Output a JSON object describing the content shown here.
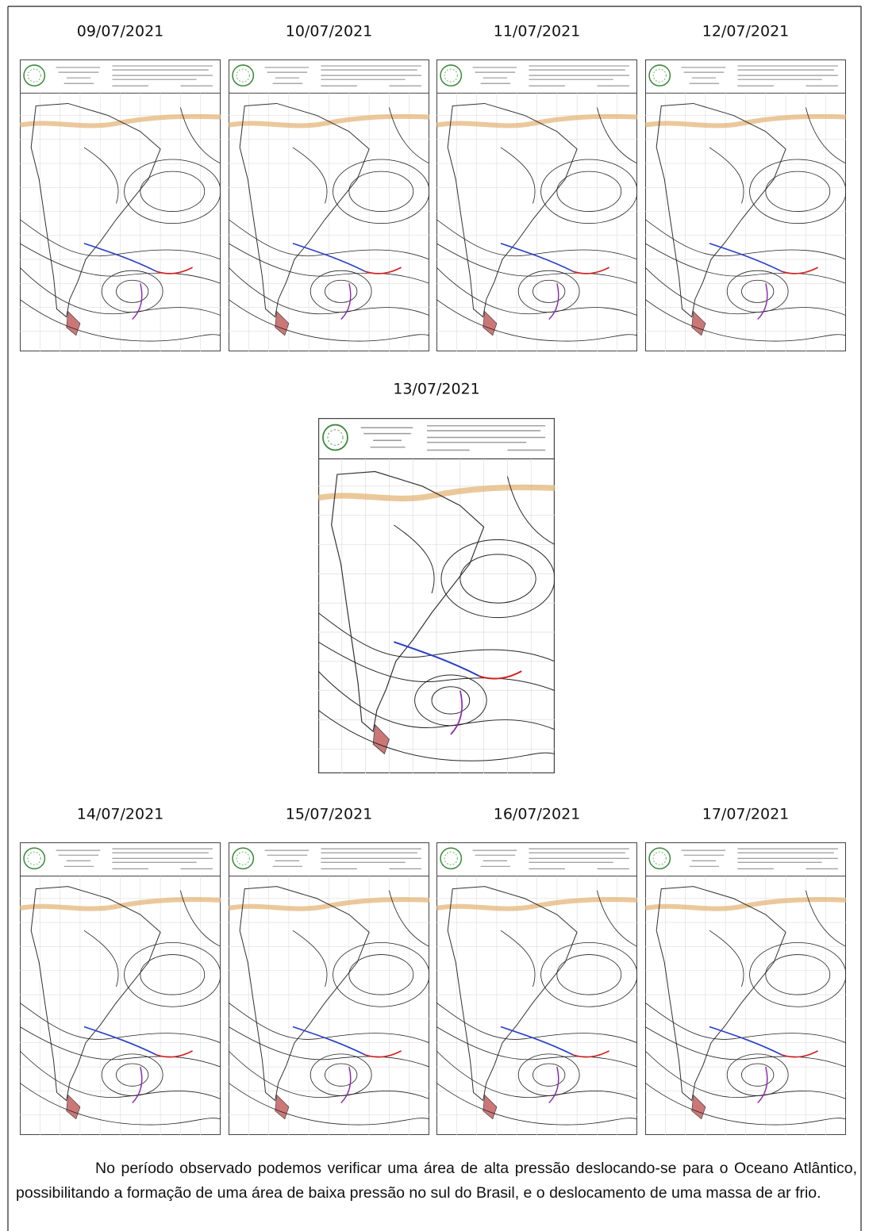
{
  "dates": [
    "09/07/2021",
    "10/07/2021",
    "11/07/2021",
    "12/07/2021",
    "13/07/2021",
    "14/07/2021",
    "15/07/2021",
    "16/07/2021",
    "17/07/2021"
  ],
  "paragraph": "No período observado podemos verificar uma área de alta pressão deslocando-se para o Oceano Atlântico, possibilitando  a formação de uma área de baixa pressão no sul do Brasil, e o deslocamento de uma massa de ar frio."
}
